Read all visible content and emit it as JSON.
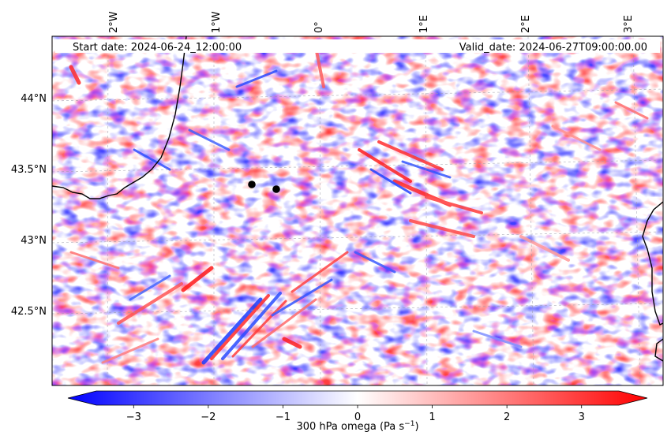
{
  "map": {
    "start_date_text": "Start date: 2024-06-24_12:00:00",
    "valid_date_text": "Valid_date: 2024-06-27T09:00:00.00",
    "longitude_labels": [
      "2°W",
      "1°W",
      "0°",
      "1°E",
      "2°E",
      "3°E"
    ],
    "latitude_labels": [
      "44°N",
      "43.5°N",
      "43°N",
      "42.5°N"
    ],
    "markers": [
      {
        "name": "point-west",
        "lon": -0.65,
        "lat": 43.38
      },
      {
        "name": "point-east",
        "lon": -0.42,
        "lat": 43.35
      }
    ],
    "extent": {
      "lon_min": -2.55,
      "lon_max": 3.35,
      "lat_min": 42.0,
      "lat_max": 44.42
    }
  },
  "colorbar": {
    "label": "300 hPa omega (Pa s",
    "label_exponent": "−1",
    "label_close": ")",
    "tick_labels": [
      "−3",
      "−2",
      "−1",
      "0",
      "1",
      "2",
      "3"
    ],
    "tick_values": [
      -3,
      -2,
      -1,
      0,
      1,
      2,
      3
    ],
    "range": [
      -3.5,
      3.5
    ],
    "colors": {
      "low": "#0000ff",
      "mid": "#ffffff",
      "high": "#ff0000"
    }
  }
}
